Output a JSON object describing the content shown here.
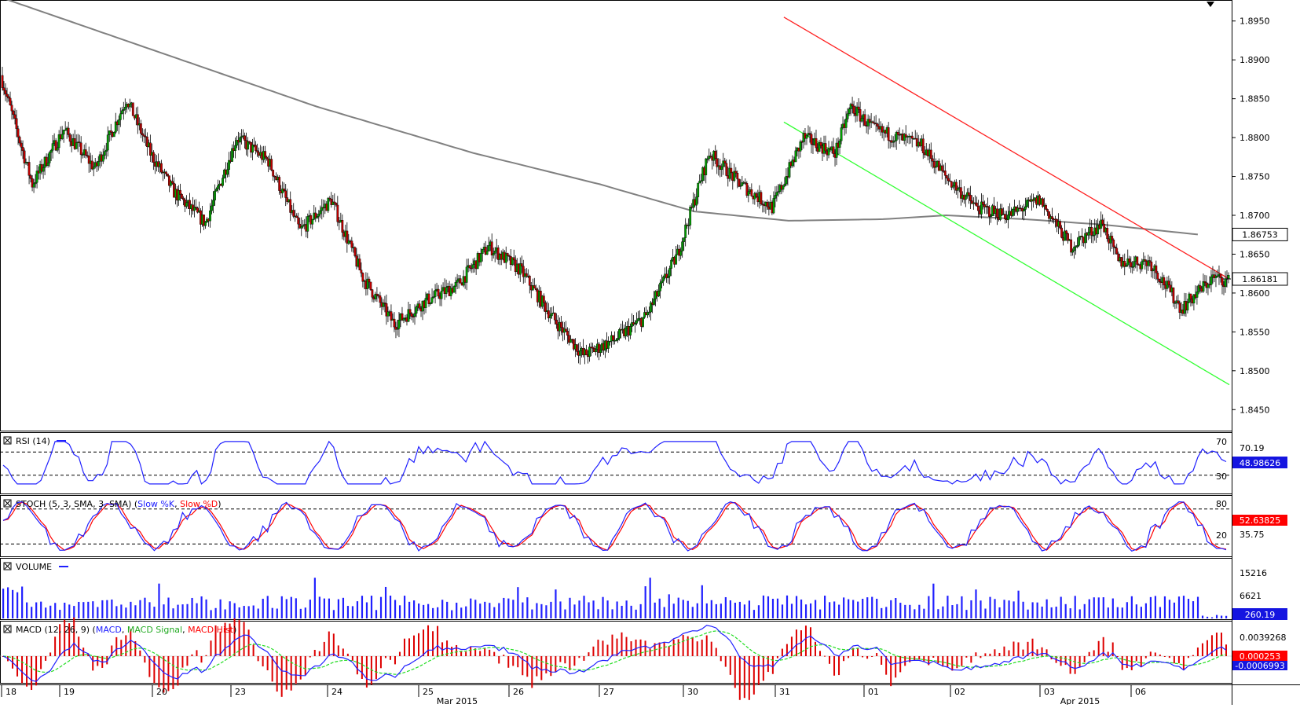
{
  "price_axis": {
    "ticks": [
      "1.8950",
      "1.8900",
      "1.8850",
      "1.8800",
      "1.8750",
      "1.8700",
      "1.8650",
      "1.8600",
      "1.8550",
      "1.8500",
      "1.8450"
    ],
    "ma_label": "1.86753",
    "last_label": "1.86181"
  },
  "panels": {
    "rsi": {
      "title": "RSI (14)",
      "level_high": "70",
      "level_low": "30",
      "axis_value": "70.19",
      "current": "48.98626"
    },
    "stoch": {
      "title": "STOCH (5, 3, SMA, 3, SMA)",
      "k_label": "Slow %K",
      "d_label": "Slow %D",
      "level_high": "80",
      "level_low": "20",
      "axis_value": "35.75",
      "current": "52.63825"
    },
    "volume": {
      "title": "VOLUME",
      "tick_high": "15216",
      "tick_low": "6621",
      "current": "260.19"
    },
    "macd": {
      "title": "MACD (12, 26, 9)",
      "macd_label": "MACD",
      "signal_label": "MACD Signal",
      "hist_label": "MACD Hist",
      "axis_value": "0.0039268",
      "current": "0.000253",
      "current2": "-0.0006993"
    }
  },
  "time_axis": {
    "days": [
      "18",
      "19",
      "20",
      "23",
      "24",
      "25",
      "26",
      "27",
      "30",
      "31",
      "01",
      "02",
      "03",
      "06"
    ],
    "months": [
      "Mar 2015",
      "Apr 2015"
    ]
  },
  "colors": {
    "up": "#00a000",
    "down": "#c00000",
    "ma": "#808080",
    "channel_top": "#ff2020",
    "channel_bottom": "#33ff33",
    "indicator": "#2020ff",
    "signal_red": "#ff0000",
    "signal_green": "#22dd22",
    "badge_blue": "#1515e0",
    "badge_red": "#ff0000"
  },
  "chart_data": {
    "type": "candlestick",
    "y_range": [
      1.8425,
      1.8975
    ],
    "ohlc_series": [
      {
        "anchor": 0,
        "value": 1.888
      },
      {
        "anchor": 20,
        "value": 1.874
      },
      {
        "anchor": 40,
        "value": 1.881
      },
      {
        "anchor": 60,
        "value": 1.876
      },
      {
        "anchor": 80,
        "value": 1.885
      },
      {
        "anchor": 95,
        "value": 1.878
      },
      {
        "anchor": 110,
        "value": 1.873
      },
      {
        "anchor": 130,
        "value": 1.869
      },
      {
        "anchor": 150,
        "value": 1.88
      },
      {
        "anchor": 170,
        "value": 1.877
      },
      {
        "anchor": 190,
        "value": 1.868
      },
      {
        "anchor": 210,
        "value": 1.872
      },
      {
        "anchor": 230,
        "value": 1.862
      },
      {
        "anchor": 250,
        "value": 1.856
      },
      {
        "anchor": 270,
        "value": 1.859
      },
      {
        "anchor": 290,
        "value": 1.861
      },
      {
        "anchor": 310,
        "value": 1.866
      },
      {
        "anchor": 330,
        "value": 1.863
      },
      {
        "anchor": 350,
        "value": 1.857
      },
      {
        "anchor": 370,
        "value": 1.852
      },
      {
        "anchor": 390,
        "value": 1.854
      },
      {
        "anchor": 410,
        "value": 1.857
      },
      {
        "anchor": 430,
        "value": 1.865
      },
      {
        "anchor": 450,
        "value": 1.878
      },
      {
        "anchor": 470,
        "value": 1.874
      },
      {
        "anchor": 490,
        "value": 1.871
      },
      {
        "anchor": 510,
        "value": 1.88
      },
      {
        "anchor": 530,
        "value": 1.878
      },
      {
        "anchor": 540,
        "value": 1.884
      },
      {
        "anchor": 555,
        "value": 1.881
      },
      {
        "anchor": 570,
        "value": 1.88
      },
      {
        "anchor": 585,
        "value": 1.879
      },
      {
        "anchor": 600,
        "value": 1.875
      },
      {
        "anchor": 620,
        "value": 1.871
      },
      {
        "anchor": 640,
        "value": 1.87
      },
      {
        "anchor": 660,
        "value": 1.872
      },
      {
        "anchor": 680,
        "value": 1.866
      },
      {
        "anchor": 700,
        "value": 1.869
      },
      {
        "anchor": 710,
        "value": 1.864
      },
      {
        "anchor": 730,
        "value": 1.864
      },
      {
        "anchor": 750,
        "value": 1.858
      },
      {
        "anchor": 770,
        "value": 1.862
      },
      {
        "anchor": 780,
        "value": 1.8615
      }
    ],
    "candle_count": 780,
    "moving_average": [
      {
        "anchor": 0,
        "value": 1.898
      },
      {
        "anchor": 100,
        "value": 1.891
      },
      {
        "anchor": 200,
        "value": 1.884
      },
      {
        "anchor": 300,
        "value": 1.878
      },
      {
        "anchor": 380,
        "value": 1.874
      },
      {
        "anchor": 440,
        "value": 1.8705
      },
      {
        "anchor": 500,
        "value": 1.8693
      },
      {
        "anchor": 560,
        "value": 1.8695
      },
      {
        "anchor": 600,
        "value": 1.87
      },
      {
        "anchor": 650,
        "value": 1.8695
      },
      {
        "anchor": 700,
        "value": 1.8688
      },
      {
        "anchor": 760,
        "value": 1.86753
      }
    ],
    "channel_upper": {
      "start": {
        "anchor": 497,
        "value": 1.8955
      },
      "end": {
        "anchor": 780,
        "value": 1.8618
      }
    },
    "channel_lower": {
      "start": {
        "anchor": 497,
        "value": 1.882
      },
      "end": {
        "anchor": 780,
        "value": 1.8482
      }
    }
  }
}
